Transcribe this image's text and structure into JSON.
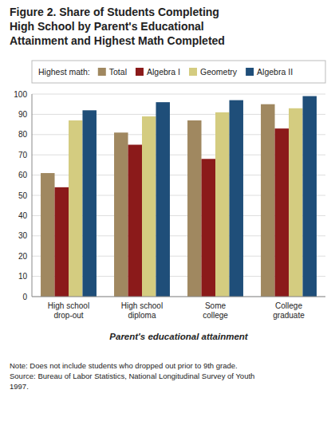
{
  "chart_data": {
    "type": "bar",
    "title": "Figure 2.  Share of Students Completing\nHigh School by Parent's Educational\nAttainment and Highest Math Completed",
    "categories": [
      "High school\ndrop-out",
      "High school\ndiploma",
      "Some\ncollege",
      "College\ngraduate"
    ],
    "series": [
      {
        "name": "Total",
        "color": "#a08860",
        "values": [
          61,
          81,
          87,
          95
        ]
      },
      {
        "name": "Algebra I",
        "color": "#8b1a1a",
        "values": [
          54,
          75,
          68,
          83
        ]
      },
      {
        "name": "Geometry",
        "color": "#d4cc80",
        "values": [
          87,
          89,
          91,
          93
        ]
      },
      {
        "name": "Algebra II",
        "color": "#1f4e79",
        "values": [
          92,
          96,
          97,
          99
        ]
      }
    ],
    "legend_title": "Highest math:",
    "legend": "top",
    "xlabel": "Parent's educational attainment",
    "ylim": [
      0,
      100
    ],
    "yticks": [
      0,
      10,
      20,
      30,
      40,
      50,
      60,
      70,
      80,
      90,
      100
    ],
    "grid": true,
    "notes": [
      "Note: Does not include students who dropped out prior to 9th grade.",
      "Source: Bureau of Labor Statistics, National Longitudinal Survey of Youth",
      "1997."
    ]
  }
}
